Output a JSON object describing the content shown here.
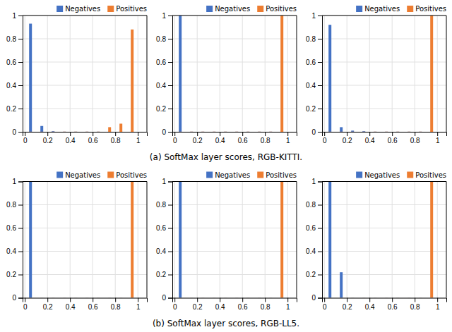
{
  "chart_data": [
    {
      "type": "bar",
      "x": [
        0.05,
        0.15,
        0.25,
        0.35,
        0.45,
        0.55,
        0.65,
        0.75,
        0.85,
        0.95
      ],
      "series": [
        {
          "name": "Negatives",
          "color": "#4472C4",
          "values": [
            0.93,
            0.05,
            0.005,
            0.001,
            0.001,
            0.001,
            0.001,
            0.001,
            0.001,
            0.001
          ]
        },
        {
          "name": "Positives",
          "color": "#ED7D31",
          "values": [
            0.001,
            0.001,
            0.001,
            0.001,
            0.001,
            0.001,
            0.001,
            0.04,
            0.07,
            0.88
          ]
        }
      ],
      "xlim": [
        -0.02,
        1.08
      ],
      "xticks": [
        0,
        0.2,
        0.4,
        0.6,
        0.8,
        1
      ],
      "ylim": [
        0,
        1
      ],
      "yticks": [
        0,
        0.2,
        0.4,
        0.6,
        0.8,
        1
      ],
      "grid": true,
      "legend": "upper right"
    },
    {
      "type": "bar",
      "title": "(a) SoftMax layer scores, RGB-KITTI.",
      "x": [
        0.05,
        0.15,
        0.25,
        0.35,
        0.45,
        0.55,
        0.65,
        0.75,
        0.85,
        0.95
      ],
      "series": [
        {
          "name": "Negatives",
          "color": "#4472C4",
          "values": [
            1.0,
            0.001,
            0.001,
            0.001,
            0.001,
            0.001,
            0.001,
            0.001,
            0.001,
            0.001
          ]
        },
        {
          "name": "Positives",
          "color": "#ED7D31",
          "values": [
            0.001,
            0.001,
            0.001,
            0.001,
            0.001,
            0.001,
            0.001,
            0.001,
            0.001,
            1.0
          ]
        }
      ],
      "xlim": [
        -0.02,
        1.08
      ],
      "xticks": [
        0,
        0.2,
        0.4,
        0.6,
        0.8,
        1
      ],
      "ylim": [
        0,
        1
      ],
      "yticks": [
        0,
        0.2,
        0.4,
        0.6,
        0.8,
        1
      ],
      "grid": true,
      "legend": "upper right"
    },
    {
      "type": "bar",
      "x": [
        0.05,
        0.15,
        0.25,
        0.35,
        0.45,
        0.55,
        0.65,
        0.75,
        0.85,
        0.95
      ],
      "series": [
        {
          "name": "Negatives",
          "color": "#4472C4",
          "values": [
            0.92,
            0.04,
            0.01,
            0.005,
            0.001,
            0.001,
            0.001,
            0.001,
            0.001,
            0.001
          ]
        },
        {
          "name": "Positives",
          "color": "#ED7D31",
          "values": [
            0.001,
            0.001,
            0.001,
            0.001,
            0.001,
            0.001,
            0.001,
            0.001,
            0.001,
            1.0
          ]
        }
      ],
      "xlim": [
        -0.02,
        1.08
      ],
      "xticks": [
        0,
        0.2,
        0.4,
        0.6,
        0.8,
        1
      ],
      "ylim": [
        0,
        1
      ],
      "yticks": [
        0,
        0.2,
        0.4,
        0.6,
        0.8,
        1
      ],
      "grid": true,
      "legend": "upper right"
    },
    {
      "type": "bar",
      "x": [
        0.05,
        0.15,
        0.25,
        0.35,
        0.45,
        0.55,
        0.65,
        0.75,
        0.85,
        0.95
      ],
      "series": [
        {
          "name": "Negatives",
          "color": "#4472C4",
          "values": [
            1.0,
            0.001,
            0.001,
            0.001,
            0.001,
            0.001,
            0.001,
            0.001,
            0.001,
            0.001
          ]
        },
        {
          "name": "Positives",
          "color": "#ED7D31",
          "values": [
            0.001,
            0.001,
            0.001,
            0.001,
            0.001,
            0.001,
            0.001,
            0.001,
            0.001,
            1.0
          ]
        }
      ],
      "xlim": [
        -0.02,
        1.08
      ],
      "xticks": [
        0,
        0.2,
        0.4,
        0.6,
        0.8,
        1
      ],
      "ylim": [
        0,
        1
      ],
      "yticks": [
        0,
        0.2,
        0.4,
        0.6,
        0.8,
        1
      ],
      "grid": true,
      "legend": "upper right"
    },
    {
      "type": "bar",
      "title": "(b) SoftMax layer scores, RGB-LL5.",
      "x": [
        0.05,
        0.15,
        0.25,
        0.35,
        0.45,
        0.55,
        0.65,
        0.75,
        0.85,
        0.95
      ],
      "series": [
        {
          "name": "Negatives",
          "color": "#4472C4",
          "values": [
            1.0,
            0.001,
            0.001,
            0.001,
            0.001,
            0.001,
            0.001,
            0.001,
            0.001,
            0.001
          ]
        },
        {
          "name": "Positives",
          "color": "#ED7D31",
          "values": [
            0.001,
            0.001,
            0.001,
            0.001,
            0.001,
            0.001,
            0.001,
            0.001,
            0.001,
            1.0
          ]
        }
      ],
      "xlim": [
        -0.02,
        1.08
      ],
      "xticks": [
        0,
        0.2,
        0.4,
        0.6,
        0.8,
        1
      ],
      "ylim": [
        0,
        1
      ],
      "yticks": [
        0,
        0.2,
        0.4,
        0.6,
        0.8,
        1
      ],
      "grid": true,
      "legend": "upper right"
    },
    {
      "type": "bar",
      "x": [
        0.05,
        0.15,
        0.25,
        0.35,
        0.45,
        0.55,
        0.65,
        0.75,
        0.85,
        0.95
      ],
      "series": [
        {
          "name": "Negatives",
          "color": "#4472C4",
          "values": [
            1.0,
            0.22,
            0.001,
            0.001,
            0.001,
            0.001,
            0.001,
            0.001,
            0.001,
            0.001
          ]
        },
        {
          "name": "Positives",
          "color": "#ED7D31",
          "values": [
            0.001,
            0.001,
            0.001,
            0.001,
            0.001,
            0.001,
            0.001,
            0.001,
            0.001,
            1.0
          ]
        }
      ],
      "xlim": [
        -0.02,
        1.08
      ],
      "xticks": [
        0,
        0.2,
        0.4,
        0.6,
        0.8,
        1
      ],
      "ylim": [
        0,
        1
      ],
      "yticks": [
        0,
        0.2,
        0.4,
        0.6,
        0.8,
        1
      ],
      "grid": true,
      "legend": "upper right"
    }
  ]
}
